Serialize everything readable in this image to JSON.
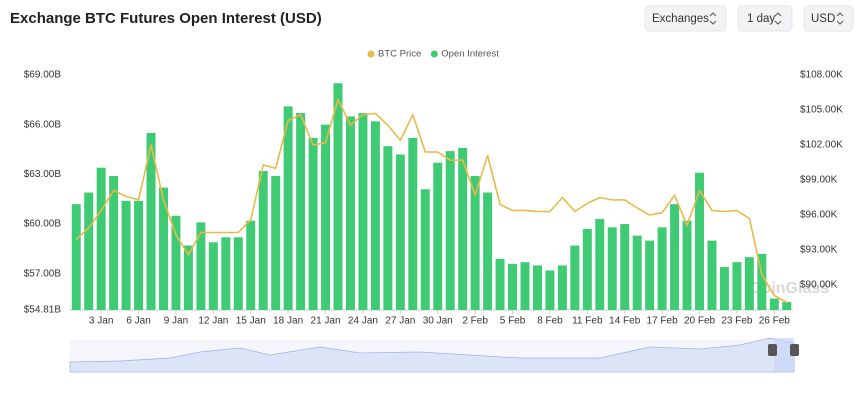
{
  "chart_data": {
    "type": "bar",
    "title": "Exchange BTC Futures Open Interest (USD)",
    "controls": [
      "Exchanges",
      "1 day",
      "USD"
    ],
    "watermark": "CoinGlass",
    "categories": [
      null,
      null,
      "3 Jan",
      null,
      null,
      "6 Jan",
      null,
      null,
      "9 Jan",
      null,
      null,
      "12 Jan",
      null,
      null,
      "15 Jan",
      null,
      null,
      "18 Jan",
      null,
      null,
      "21 Jan",
      null,
      null,
      "24 Jan",
      null,
      null,
      "27 Jan",
      null,
      null,
      "30 Jan",
      null,
      null,
      "2 Feb",
      null,
      null,
      "5 Feb",
      null,
      null,
      "8 Feb",
      null,
      null,
      "11 Feb",
      null,
      null,
      "14 Feb",
      null,
      null,
      "17 Feb",
      null,
      null,
      "20 Feb",
      null,
      null,
      "23 Feb",
      null,
      null,
      "26 Feb",
      null
    ],
    "series": [
      {
        "name": "BTC Price",
        "type": "line",
        "axis": "y2",
        "color": "#e9b949",
        "values": [
          93.9,
          94.9,
          96.4,
          98.1,
          97.6,
          97.3,
          102.0,
          97.3,
          94.3,
          92.6,
          94.5,
          94.5,
          94.5,
          94.5,
          95.6,
          100.3,
          100.0,
          104.1,
          104.6,
          102.0,
          102.2,
          105.9,
          103.7,
          104.6,
          104.7,
          103.7,
          102.4,
          104.6,
          101.4,
          101.4,
          100.7,
          100.7,
          97.7,
          101.1,
          96.9,
          96.4,
          96.4,
          96.3,
          96.3,
          97.5,
          96.3,
          97.0,
          97.5,
          97.3,
          97.3,
          96.6,
          96.0,
          96.2,
          97.7,
          95.1,
          98.1,
          96.4,
          96.3,
          96.4,
          95.7,
          90.9,
          89.1,
          88.5
        ]
      },
      {
        "name": "Open Interest",
        "type": "bar",
        "color": "#3fcb74",
        "values": [
          61.2,
          61.9,
          63.4,
          62.9,
          61.4,
          61.4,
          65.5,
          62.2,
          60.5,
          58.7,
          60.1,
          58.9,
          59.2,
          59.2,
          60.2,
          63.2,
          62.9,
          67.1,
          66.7,
          65.2,
          66.0,
          68.5,
          66.5,
          66.7,
          66.2,
          64.7,
          64.2,
          65.2,
          62.1,
          63.7,
          64.4,
          64.6,
          62.9,
          61.9,
          57.9,
          57.6,
          57.7,
          57.5,
          57.2,
          57.5,
          58.7,
          59.7,
          60.3,
          59.8,
          60.0,
          59.3,
          59.0,
          59.8,
          61.2,
          60.2,
          63.1,
          59.0,
          57.4,
          57.7,
          58.0,
          58.2,
          55.5,
          55.3
        ]
      }
    ],
    "ylim": [
      54.81,
      69.3
    ],
    "yticks": [
      {
        "value": 54.81,
        "label": "$54.81B"
      },
      {
        "value": 57,
        "label": "$57.00B"
      },
      {
        "value": 60,
        "label": "$60.00B"
      },
      {
        "value": 63,
        "label": "$63.00B"
      },
      {
        "value": 66,
        "label": "$66.00B"
      },
      {
        "value": 69,
        "label": "$69.00B"
      }
    ],
    "y2lim": [
      87.86,
      108.43
    ],
    "y2ticks": [
      {
        "value": 90,
        "label": "$90.00K"
      },
      {
        "value": 93,
        "label": "$93.00K"
      },
      {
        "value": 96,
        "label": "$96.00K"
      },
      {
        "value": 99,
        "label": "$99.00K"
      },
      {
        "value": 102,
        "label": "$102.00K"
      },
      {
        "value": 105,
        "label": "$105.00K"
      },
      {
        "value": 108,
        "label": "$108.00K"
      }
    ],
    "grid": false,
    "legend": "top"
  }
}
